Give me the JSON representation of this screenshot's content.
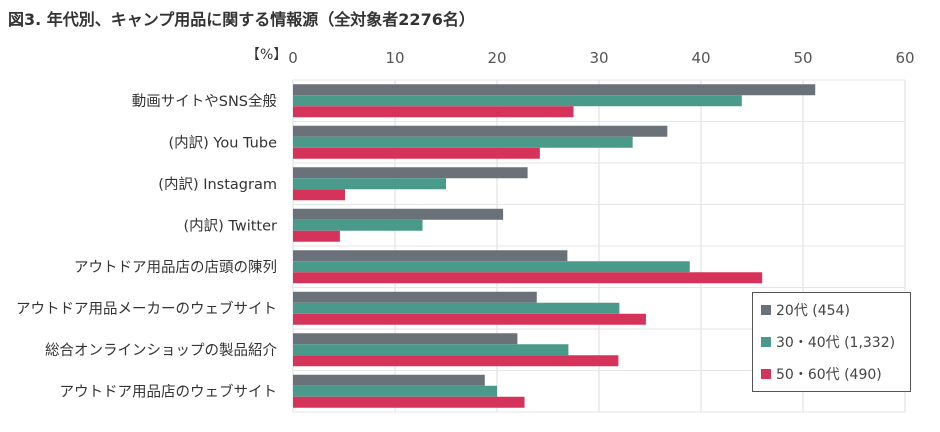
{
  "title": "図3. 年代別、キャンプ用品に関する情報源（全対象者2276名）",
  "chart_data": {
    "type": "bar",
    "orientation": "horizontal",
    "title": "図3. 年代別、キャンプ用品に関する情報源（全対象者2276名）",
    "unit": "【%】",
    "xlim": [
      0,
      60
    ],
    "ticks": [
      "0",
      "10",
      "20",
      "30",
      "40",
      "50",
      "60"
    ],
    "categories": [
      "動画サイトやSNS全般",
      "(内訳) You Tube",
      "(内訳) Instagram",
      "(内訳) Twitter",
      "アウトドア用品店の店頭の陳列",
      "アウトドア用品メーカーのウェブサイト",
      "総合オンラインショップの製品紹介",
      "アウトドア用品店のウェブサイト"
    ],
    "series": [
      {
        "name": "20代 (454)",
        "color": "#6b7178",
        "values": [
          51.2,
          36.7,
          23.0,
          20.6,
          26.9,
          23.9,
          22.0,
          18.8
        ]
      },
      {
        "name": "30・40代 (1,332)",
        "color": "#4a9a8c",
        "values": [
          44.0,
          33.3,
          15.0,
          12.7,
          38.9,
          32.0,
          27.0,
          20.0
        ]
      },
      {
        "name": "50・60代 (490)",
        "color": "#d6335a",
        "values": [
          27.5,
          24.2,
          5.1,
          4.6,
          46.0,
          34.6,
          31.9,
          22.7
        ]
      }
    ],
    "grid": true,
    "legend": "bottom-right"
  }
}
